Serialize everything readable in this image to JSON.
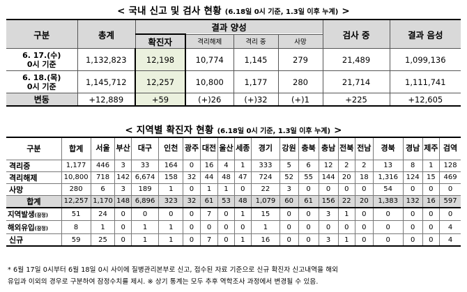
{
  "title1": {
    "main": "< 국내 신고 및 검사 현황",
    "sub": "(6.18일 0시 기준, 1.3일 이후 누계)",
    "end": ">"
  },
  "table1": {
    "headers": {
      "category": "구분",
      "total": "총계",
      "positive_group": "결과 양성",
      "confirmed": "확진자",
      "released": "격리해제",
      "isolating": "격리 중",
      "deaths": "사망",
      "testing": "검사 중",
      "negative": "결과 음성"
    },
    "rows": [
      {
        "label_line1": "6. 17.(수)",
        "label_line2": "0시 기준",
        "total": "1,132,823",
        "confirmed": "12,198",
        "released": "10,774",
        "isolating": "1,145",
        "deaths": "279",
        "testing": "21,489",
        "negative": "1,099,136"
      },
      {
        "label_line1": "6. 18.(목)",
        "label_line2": "0시 기준",
        "total": "1,145,712",
        "confirmed": "12,257",
        "released": "10,800",
        "isolating": "1,177",
        "deaths": "280",
        "testing": "21,714",
        "negative": "1,111,741"
      }
    ],
    "change": {
      "label": "변동",
      "total": "+12,889",
      "confirmed": "+59",
      "released": "(+)26",
      "isolating": "(+)32",
      "deaths": "(+)1",
      "testing": "+225",
      "negative": "+12,605"
    }
  },
  "title2": {
    "main": "< 지역별 확진자 현황",
    "sub": "(6.18일 0시 기준, 1.3일 이후 누계)",
    "end": ">"
  },
  "table2": {
    "headers": [
      "구분",
      "합계",
      "서울",
      "부산",
      "대구",
      "인천",
      "광주",
      "대전",
      "울산",
      "세종",
      "경기",
      "강원",
      "충북",
      "충남",
      "전북",
      "전남",
      "경북",
      "경남",
      "제주",
      "검역"
    ],
    "rows": [
      {
        "label": "격리중",
        "tag": "",
        "values": [
          "1,177",
          "446",
          "3",
          "33",
          "164",
          "0",
          "16",
          "4",
          "1",
          "333",
          "5",
          "6",
          "12",
          "2",
          "2",
          "13",
          "8",
          "1",
          "128"
        ]
      },
      {
        "label": "격리해제",
        "tag": "",
        "values": [
          "10,800",
          "718",
          "142",
          "6,674",
          "158",
          "32",
          "44",
          "48",
          "47",
          "724",
          "52",
          "55",
          "144",
          "20",
          "18",
          "1,316",
          "124",
          "15",
          "469"
        ]
      },
      {
        "label": "사망",
        "tag": "",
        "values": [
          "280",
          "6",
          "3",
          "189",
          "1",
          "0",
          "1",
          "1",
          "0",
          "22",
          "3",
          "0",
          "0",
          "0",
          "0",
          "54",
          "0",
          "0",
          "0"
        ]
      },
      {
        "label": "합계",
        "tag": "",
        "values": [
          "12,257",
          "1,170",
          "148",
          "6,896",
          "323",
          "32",
          "61",
          "53",
          "48",
          "1,079",
          "60",
          "61",
          "156",
          "22",
          "20",
          "1,383",
          "132",
          "16",
          "597"
        ]
      },
      {
        "label": "지역발생",
        "tag": "(잠정)",
        "values": [
          "51",
          "24",
          "0",
          "0",
          "0",
          "0",
          "7",
          "0",
          "1",
          "15",
          "0",
          "0",
          "3",
          "1",
          "0",
          "0",
          "0",
          "0",
          "0"
        ]
      },
      {
        "label": "해외유입",
        "tag": "(잠정)",
        "values": [
          "8",
          "1",
          "0",
          "1",
          "1",
          "0",
          "0",
          "0",
          "0",
          "1",
          "0",
          "0",
          "0",
          "0",
          "0",
          "0",
          "0",
          "0",
          "4"
        ]
      },
      {
        "label": "신규",
        "tag": "",
        "values": [
          "59",
          "25",
          "0",
          "1",
          "1",
          "0",
          "7",
          "0",
          "1",
          "16",
          "0",
          "0",
          "3",
          "1",
          "0",
          "0",
          "0",
          "0",
          "4"
        ]
      }
    ]
  },
  "footnote": {
    "line1": "* 6월 17일 0시부터 6월 18일 0시 사이에 질병관리본부로 신고, 접수된 자료 기준으로 신규 확진자 신고내역을 해외",
    "line2": "유입과 이외의 경우로 구분하여 잠정수치를 제시. ※ 상기 통계는 모두 추후 역학조사 과정에서 변경될 수 있음."
  }
}
